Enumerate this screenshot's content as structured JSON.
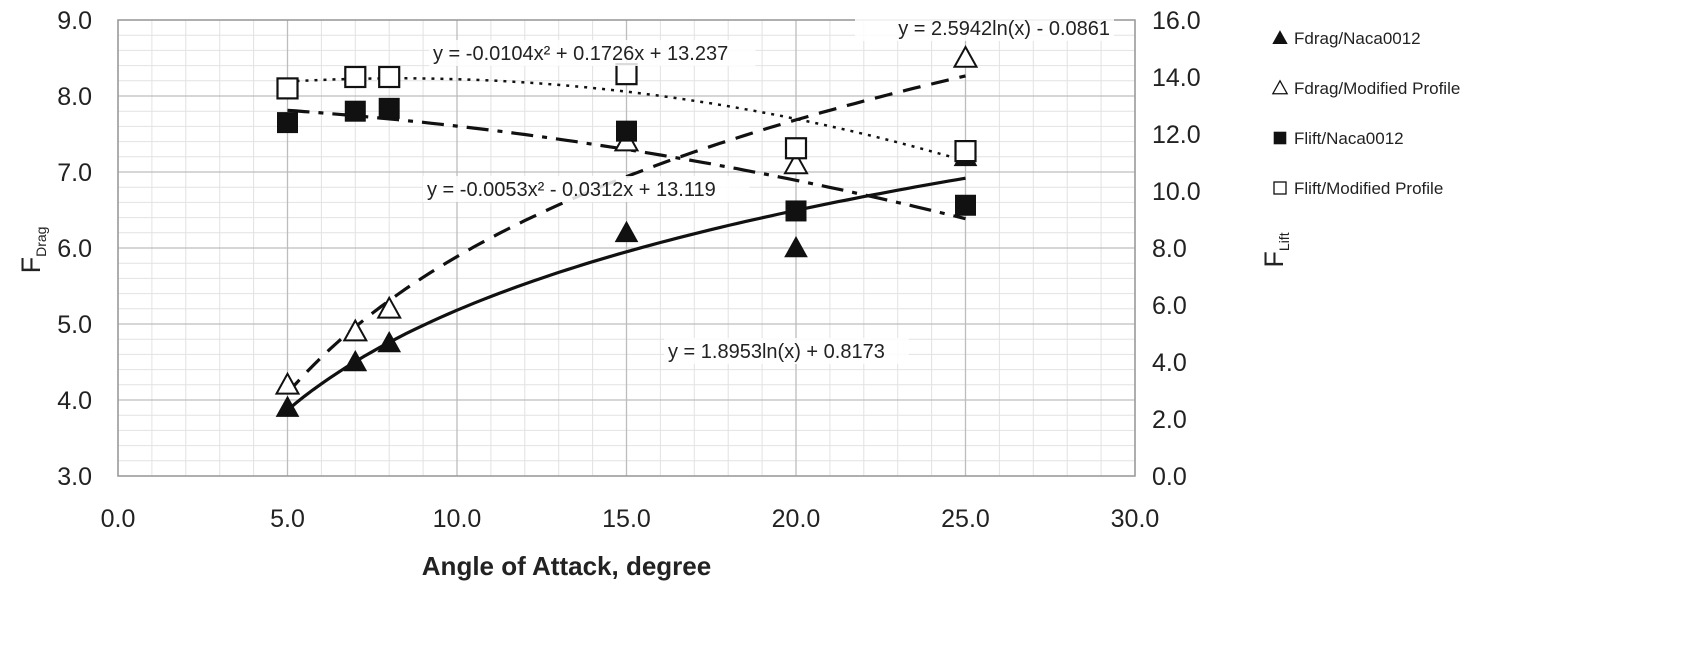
{
  "chart_data": {
    "type": "scatter",
    "title": "",
    "xlabel": "Angle of Attack, degree",
    "ylabel_left": {
      "main": "F",
      "sub": "Drag"
    },
    "ylabel_right": {
      "main": "F",
      "sub": "Lift"
    },
    "xlim": [
      0,
      30
    ],
    "ylim_left": [
      3,
      9
    ],
    "ylim_right": [
      0,
      16
    ],
    "x_ticks": [
      "0.0",
      "5.0",
      "10.0",
      "15.0",
      "20.0",
      "25.0",
      "30.0"
    ],
    "y_left_ticks": [
      "3.0",
      "4.0",
      "5.0",
      "6.0",
      "7.0",
      "8.0",
      "9.0"
    ],
    "y_right_ticks": [
      "0.0",
      "2.0",
      "4.0",
      "6.0",
      "8.0",
      "10.0",
      "12.0",
      "14.0",
      "16.0"
    ],
    "grid": true,
    "legend_position": "right",
    "series": [
      {
        "name": "Fdrag/Naca0012",
        "axis": "left",
        "marker": "triangle-filled",
        "x": [
          5,
          7,
          8,
          15,
          20,
          25
        ],
        "y": [
          3.9,
          4.5,
          4.75,
          6.2,
          6.0,
          7.2
        ]
      },
      {
        "name": "Fdrag/Modified Profile",
        "axis": "left",
        "marker": "triangle-open",
        "x": [
          5,
          7,
          8,
          15,
          20,
          25
        ],
        "y": [
          4.2,
          4.9,
          5.2,
          7.4,
          7.1,
          8.5
        ]
      },
      {
        "name": "Flift/Naca0012",
        "axis": "right",
        "marker": "square-filled",
        "x": [
          5,
          7,
          8,
          15,
          20,
          25
        ],
        "y": [
          12.4,
          12.8,
          12.9,
          12.1,
          9.3,
          9.5
        ]
      },
      {
        "name": "Flift/Modified Profile",
        "axis": "right",
        "marker": "square-open",
        "x": [
          5,
          7,
          8,
          15,
          20,
          25
        ],
        "y": [
          13.6,
          14.0,
          14.0,
          14.1,
          11.5,
          11.4
        ]
      }
    ],
    "trendlines": [
      {
        "series": "Fdrag/Naca0012",
        "kind": "log",
        "a": 1.8953,
        "b": 0.8173,
        "style": "solid",
        "label": "y = 1.8953ln(x) + 0.8173"
      },
      {
        "series": "Fdrag/Modified Profile",
        "kind": "log",
        "a": 2.5942,
        "b": -0.0861,
        "style": "dashed",
        "label": "y = 2.5942ln(x) - 0.0861"
      },
      {
        "series": "Flift/Naca0012",
        "kind": "poly2",
        "c2": -0.0053,
        "c1": -0.0312,
        "c0": 13.119,
        "style": "dashdot",
        "label": "y = -0.0053x² - 0.0312x + 13.119"
      },
      {
        "series": "Flift/Modified Profile",
        "kind": "poly2",
        "c2": -0.0104,
        "c1": 0.1726,
        "c0": 13.237,
        "style": "dotted",
        "label": "y = -0.0104x² + 0.1726x + 13.237"
      }
    ]
  }
}
